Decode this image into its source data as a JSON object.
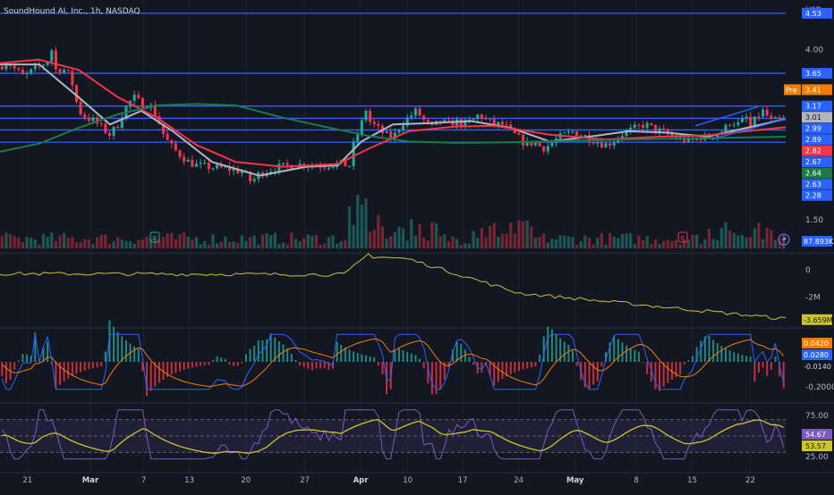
{
  "header": {
    "title": "SoundHound AI, Inc., 1h, NASDAQ",
    "currency": "USD"
  },
  "chart_data": {
    "type": "candlestick",
    "price_axis": {
      "ticks": [
        {
          "value": 4.0,
          "label": "4.00"
        },
        {
          "value": 1.5,
          "label": "1.50"
        }
      ],
      "range": [
        1.45,
        4.62
      ]
    },
    "horizontal_lines": [
      {
        "value": 4.53,
        "label": "4.53"
      },
      {
        "value": 3.65,
        "label": "3.65"
      },
      {
        "value": 3.17,
        "label": "3.17"
      },
      {
        "value": 2.99,
        "label": "2.99"
      },
      {
        "value": 2.82,
        "label": "2.82"
      },
      {
        "value": 2.64,
        "label": "2.64"
      }
    ],
    "price_labels": [
      {
        "value": 4.53,
        "label": "4.53",
        "color": "#2962ff",
        "text_color": "#ffffff"
      },
      {
        "value": 3.65,
        "label": "3.65",
        "color": "#2962ff",
        "text_color": "#ffffff"
      },
      {
        "value": 3.41,
        "label": "3.41",
        "color": "#f57c00",
        "text_color": "#ffffff",
        "tag": "Pre"
      },
      {
        "value": 3.17,
        "label": "3.17",
        "color": "#2962ff",
        "text_color": "#ffffff"
      },
      {
        "value": 3.01,
        "label": "3.01",
        "color": "#b2b5be",
        "text_color": "#131722"
      },
      {
        "value": 2.99,
        "label": "2.99",
        "color": "#2962ff",
        "text_color": "#ffffff"
      },
      {
        "value": 2.89,
        "label": "2.89",
        "color": "#2962ff",
        "text_color": "#ffffff"
      },
      {
        "value": 2.82,
        "label": "2.82",
        "color": "#f23645",
        "text_color": "#ffffff"
      },
      {
        "value": 2.67,
        "label": "2.67",
        "color": "#2962ff",
        "text_color": "#ffffff"
      },
      {
        "value": 2.64,
        "label": "2.64",
        "color": "#1b7a45",
        "text_color": "#ffffff"
      },
      {
        "value": 2.63,
        "label": "2.63",
        "color": "#2962ff",
        "text_color": "#ffffff"
      },
      {
        "value": 2.28,
        "label": "2.28",
        "color": "#2962ff",
        "text_color": "#ffffff"
      }
    ],
    "volume_label": "87.893K",
    "x_ticks": [
      {
        "t": 0.035,
        "label": "21"
      },
      {
        "t": 0.115,
        "label": "Mar"
      },
      {
        "t": 0.183,
        "label": "7"
      },
      {
        "t": 0.241,
        "label": "13"
      },
      {
        "t": 0.313,
        "label": "20"
      },
      {
        "t": 0.388,
        "label": "27"
      },
      {
        "t": 0.459,
        "label": "Apr"
      },
      {
        "t": 0.519,
        "label": "10"
      },
      {
        "t": 0.589,
        "label": "17"
      },
      {
        "t": 0.66,
        "label": "24"
      },
      {
        "t": 0.732,
        "label": "May"
      },
      {
        "t": 0.81,
        "label": "8"
      },
      {
        "t": 0.881,
        "label": "15"
      },
      {
        "t": 0.955,
        "label": "22"
      }
    ],
    "price_path": [
      [
        0,
        3.75
      ],
      [
        0.01,
        3.82
      ],
      [
        0.02,
        3.7
      ],
      [
        0.03,
        3.6
      ],
      [
        0.04,
        3.68
      ],
      [
        0.05,
        3.75
      ],
      [
        0.06,
        3.82
      ],
      [
        0.065,
        4.05
      ],
      [
        0.07,
        3.7
      ],
      [
        0.08,
        3.72
      ],
      [
        0.09,
        3.6
      ],
      [
        0.1,
        3.1
      ],
      [
        0.11,
        3.0
      ],
      [
        0.12,
        2.95
      ],
      [
        0.13,
        2.85
      ],
      [
        0.14,
        2.75
      ],
      [
        0.15,
        2.9
      ],
      [
        0.16,
        3.15
      ],
      [
        0.17,
        3.3
      ],
      [
        0.18,
        3.2
      ],
      [
        0.19,
        3.2
      ],
      [
        0.2,
        3.0
      ],
      [
        0.21,
        2.7
      ],
      [
        0.22,
        2.55
      ],
      [
        0.23,
        2.45
      ],
      [
        0.24,
        2.35
      ],
      [
        0.25,
        2.3
      ],
      [
        0.27,
        2.27
      ],
      [
        0.29,
        2.25
      ],
      [
        0.31,
        2.2
      ],
      [
        0.32,
        2.05
      ],
      [
        0.33,
        2.18
      ],
      [
        0.35,
        2.26
      ],
      [
        0.37,
        2.3
      ],
      [
        0.39,
        2.32
      ],
      [
        0.41,
        2.3
      ],
      [
        0.43,
        2.32
      ],
      [
        0.445,
        2.3
      ],
      [
        0.45,
        2.6
      ],
      [
        0.46,
        2.9
      ],
      [
        0.465,
        3.15
      ],
      [
        0.47,
        2.95
      ],
      [
        0.48,
        2.85
      ],
      [
        0.49,
        2.75
      ],
      [
        0.5,
        2.7
      ],
      [
        0.51,
        2.9
      ],
      [
        0.52,
        3.0
      ],
      [
        0.53,
        3.1
      ],
      [
        0.54,
        2.95
      ],
      [
        0.55,
        2.85
      ],
      [
        0.56,
        2.95
      ],
      [
        0.57,
        2.9
      ],
      [
        0.58,
        2.95
      ],
      [
        0.59,
        2.9
      ],
      [
        0.6,
        2.95
      ],
      [
        0.61,
        3.05
      ],
      [
        0.62,
        2.95
      ],
      [
        0.63,
        2.9
      ],
      [
        0.64,
        2.9
      ],
      [
        0.65,
        2.8
      ],
      [
        0.66,
        2.7
      ],
      [
        0.67,
        2.6
      ],
      [
        0.68,
        2.65
      ],
      [
        0.69,
        2.55
      ],
      [
        0.7,
        2.6
      ],
      [
        0.71,
        2.7
      ],
      [
        0.72,
        2.75
      ],
      [
        0.73,
        2.8
      ],
      [
        0.74,
        2.75
      ],
      [
        0.75,
        2.7
      ],
      [
        0.76,
        2.65
      ],
      [
        0.77,
        2.6
      ],
      [
        0.78,
        2.65
      ],
      [
        0.79,
        2.75
      ],
      [
        0.8,
        2.8
      ],
      [
        0.81,
        2.85
      ],
      [
        0.82,
        2.9
      ],
      [
        0.83,
        2.85
      ],
      [
        0.84,
        2.8
      ],
      [
        0.85,
        2.75
      ],
      [
        0.86,
        2.7
      ],
      [
        0.87,
        2.68
      ],
      [
        0.88,
        2.65
      ],
      [
        0.89,
        2.72
      ],
      [
        0.9,
        2.7
      ],
      [
        0.91,
        2.75
      ],
      [
        0.92,
        2.8
      ],
      [
        0.93,
        2.95
      ],
      [
        0.94,
        2.9
      ],
      [
        0.95,
        3.0
      ],
      [
        0.955,
        2.85
      ],
      [
        0.96,
        2.95
      ],
      [
        0.97,
        3.1
      ],
      [
        0.975,
        3.05
      ],
      [
        0.98,
        2.95
      ],
      [
        0.99,
        2.95
      ],
      [
        1.0,
        2.97
      ]
    ],
    "moving_averages": [
      {
        "color": "#b2b5be",
        "points": [
          [
            0,
            3.78
          ],
          [
            0.05,
            3.78
          ],
          [
            0.1,
            3.3
          ],
          [
            0.14,
            2.9
          ],
          [
            0.18,
            3.1
          ],
          [
            0.22,
            2.8
          ],
          [
            0.27,
            2.35
          ],
          [
            0.33,
            2.15
          ],
          [
            0.39,
            2.28
          ],
          [
            0.43,
            2.3
          ],
          [
            0.46,
            2.65
          ],
          [
            0.5,
            2.9
          ],
          [
            0.55,
            2.92
          ],
          [
            0.6,
            2.95
          ],
          [
            0.65,
            2.85
          ],
          [
            0.7,
            2.65
          ],
          [
            0.75,
            2.72
          ],
          [
            0.8,
            2.8
          ],
          [
            0.85,
            2.78
          ],
          [
            0.9,
            2.72
          ],
          [
            0.95,
            2.85
          ],
          [
            1.0,
            2.98
          ]
        ]
      },
      {
        "color": "#f23645",
        "points": [
          [
            0,
            3.8
          ],
          [
            0.05,
            3.85
          ],
          [
            0.1,
            3.7
          ],
          [
            0.15,
            3.3
          ],
          [
            0.2,
            3.0
          ],
          [
            0.25,
            2.6
          ],
          [
            0.3,
            2.35
          ],
          [
            0.36,
            2.28
          ],
          [
            0.43,
            2.32
          ],
          [
            0.47,
            2.55
          ],
          [
            0.52,
            2.8
          ],
          [
            0.58,
            2.87
          ],
          [
            0.63,
            2.88
          ],
          [
            0.7,
            2.75
          ],
          [
            0.77,
            2.68
          ],
          [
            0.84,
            2.72
          ],
          [
            0.9,
            2.74
          ],
          [
            0.95,
            2.8
          ],
          [
            1.0,
            2.86
          ]
        ]
      },
      {
        "color": "#1b7a45",
        "points": [
          [
            0,
            2.5
          ],
          [
            0.05,
            2.62
          ],
          [
            0.1,
            2.85
          ],
          [
            0.15,
            3.05
          ],
          [
            0.2,
            3.18
          ],
          [
            0.25,
            3.2
          ],
          [
            0.3,
            3.18
          ],
          [
            0.36,
            3.0
          ],
          [
            0.42,
            2.85
          ],
          [
            0.47,
            2.73
          ],
          [
            0.52,
            2.65
          ],
          [
            0.58,
            2.63
          ],
          [
            0.65,
            2.64
          ],
          [
            0.72,
            2.66
          ],
          [
            0.8,
            2.68
          ],
          [
            0.9,
            2.7
          ],
          [
            1.0,
            2.72
          ]
        ]
      }
    ],
    "channel": {
      "upper": [
        [
          0.885,
          2.88
        ],
        [
          0.965,
          3.16
        ]
      ],
      "lower": [
        [
          0.905,
          2.68
        ],
        [
          1.0,
          2.98
        ]
      ]
    },
    "obv": {
      "ticks": [
        {
          "value": 0,
          "label": "0"
        },
        {
          "value": -2000000,
          "label": "-2M"
        }
      ],
      "value_label": "-3.659M",
      "color": "#cbc52a"
    },
    "macd": {
      "ticks": [
        {
          "value": -0.2,
          "label": "-0.2000"
        }
      ],
      "labels": [
        {
          "label": "0.0420",
          "color": "#f57c00",
          "text_color": "#ffffff"
        },
        {
          "label": "0.0280",
          "color": "#2962ff",
          "text_color": "#ffffff"
        },
        {
          "label": "-0.0140",
          "color": "#131722",
          "text_color": "#d1d4dc"
        }
      ]
    },
    "rsi": {
      "ticks": [
        {
          "value": 75,
          "label": "75.00"
        },
        {
          "value": 25,
          "label": "25.00"
        }
      ],
      "overbought": 70,
      "oversold": 30,
      "labels": [
        {
          "label": "54.67",
          "color": "#7e57c2",
          "text_color": "#ffffff"
        },
        {
          "label": "53.57",
          "color": "#cbc52a",
          "text_color": "#131722"
        }
      ]
    },
    "colors": {
      "background": "#131722",
      "up": "#26a69a",
      "down": "#f23645",
      "hline": "#2962ff",
      "grid": "#1e222d",
      "axis_text": "#b2b5be",
      "rsi_line": "#7e57c2",
      "rsi_ma": "#cbc52a",
      "rsi_band": "#7e57c2",
      "macd_line": "#2962ff",
      "signal_line": "#f57c00"
    }
  }
}
